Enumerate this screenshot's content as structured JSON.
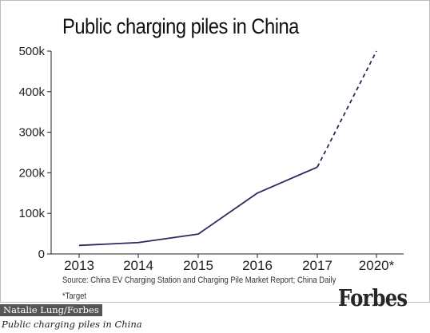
{
  "chart_data": {
    "type": "line",
    "title": "Public charging piles in China",
    "categories": [
      "2013",
      "2014",
      "2015",
      "2016",
      "2017",
      "2020*"
    ],
    "series": [
      {
        "values": [
          21000,
          28000,
          49000,
          150000,
          214000,
          500000
        ],
        "dashed_from_index": 4
      }
    ],
    "ylim": [
      0,
      500000
    ],
    "yticks": [
      {
        "value": 0,
        "label": "0"
      },
      {
        "value": 100000,
        "label": "100k"
      },
      {
        "value": 200000,
        "label": "200k"
      },
      {
        "value": 300000,
        "label": "300k"
      },
      {
        "value": 400000,
        "label": "400k"
      },
      {
        "value": 500000,
        "label": "500k"
      }
    ],
    "grid": false,
    "line_color": "#2b2a5e",
    "source": "Source: China EV Charging Station and Charging Pile Market Report; China Daily",
    "note": "*Target"
  },
  "brand": "Forbes",
  "credit": "Natalie Lung/Forbes",
  "caption": "Public charging piles in China"
}
